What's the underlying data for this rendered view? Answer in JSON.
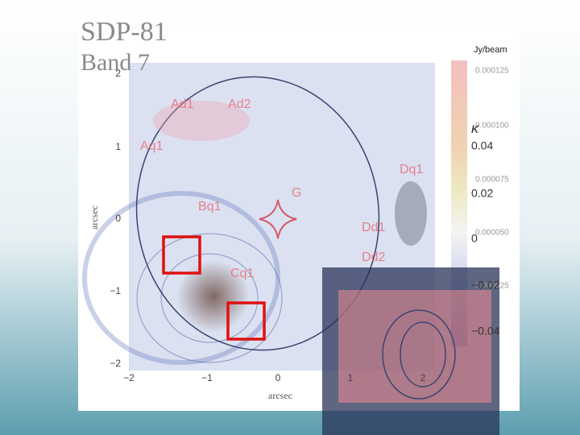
{
  "slide": {
    "title": "SDP-81",
    "subtitle": "Band 7"
  },
  "figure": {
    "image_labels": [
      "Ad1",
      "Ad2",
      "Aq1",
      "Dq1",
      "G",
      "Bq1",
      "Dd1",
      "Dd2",
      "Cq1"
    ],
    "y_ticks": [
      "2",
      "1",
      "0",
      "−1",
      "−2"
    ],
    "x_ticks": [
      "−2",
      "−1",
      "0",
      "1",
      "2"
    ],
    "y_axis_label": "arcsec",
    "x_axis_label": "arcsec",
    "flux_colorbar": {
      "unit": "Jy/beam",
      "ticks": [
        "0.000125",
        "0.000100",
        "0.000075",
        "0.000050",
        "0.000025"
      ]
    },
    "kappa_colorbar": {
      "symbol": "κ",
      "ticks": [
        "0.04",
        "0.02",
        "0",
        "−0.02",
        "−0.04"
      ]
    }
  }
}
